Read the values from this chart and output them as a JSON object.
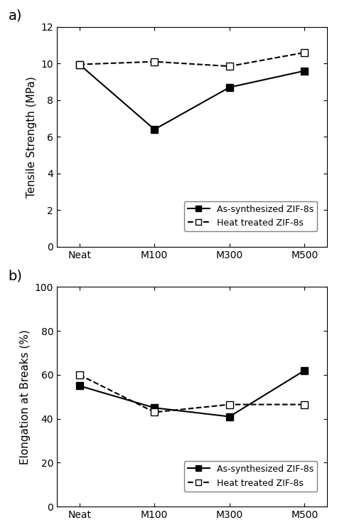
{
  "categories": [
    "Neat",
    "M100",
    "M300",
    "M500"
  ],
  "panel_a": {
    "ylabel": "Tensile Strength (MPa)",
    "ylim": [
      0,
      12
    ],
    "yticks": [
      0,
      2,
      4,
      6,
      8,
      10,
      12
    ],
    "as_synthesized": [
      9.95,
      6.4,
      8.7,
      9.6
    ],
    "heat_treated": [
      9.95,
      10.1,
      9.85,
      10.6
    ]
  },
  "panel_b": {
    "ylabel": "Elongation at Breaks (%)",
    "ylim": [
      0,
      100
    ],
    "yticks": [
      0,
      20,
      40,
      60,
      80,
      100
    ],
    "as_synthesized": [
      55.0,
      45.0,
      41.0,
      62.0
    ],
    "heat_treated": [
      60.0,
      43.0,
      46.5,
      46.5
    ]
  },
  "line_color": "#000000",
  "linewidth": 1.5,
  "markersize": 7,
  "legend_as_synth": "As-synthesized ZIF-8s",
  "legend_heat": "Heat treated ZIF-8s",
  "fontsize_label": 11,
  "fontsize_tick": 10,
  "fontsize_panel": 14
}
